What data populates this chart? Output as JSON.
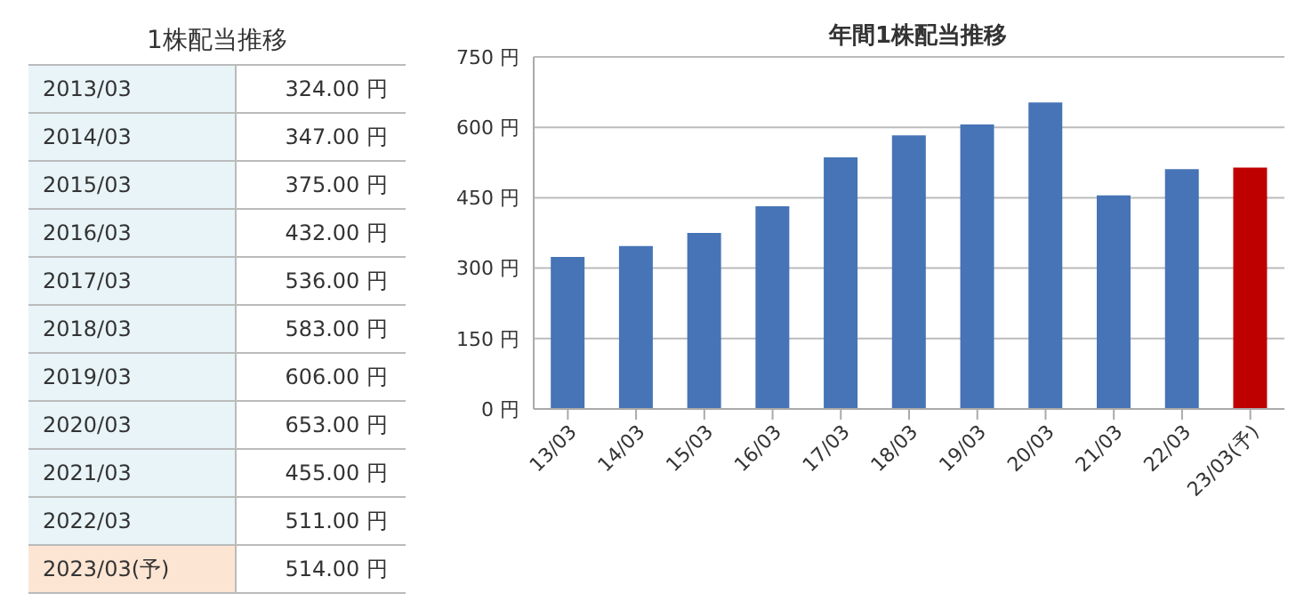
{
  "chart_data": [
    {
      "type": "other",
      "title": "1株配当推移",
      "categories": [
        "2013/03",
        "2014/03",
        "2015/03",
        "2016/03",
        "2017/03",
        "2018/03",
        "2019/03",
        "2020/03",
        "2021/03",
        "2022/03",
        "2023/03(予)"
      ],
      "value_labels": [
        "324.00 円",
        "347.00 円",
        "375.00 円",
        "432.00 円",
        "536.00 円",
        "583.00 円",
        "606.00 円",
        "653.00 円",
        "455.00 円",
        "511.00 円",
        "514.00 円"
      ],
      "colors": [
        "#e8f4f8",
        "#e8f4f8",
        "#e8f4f8",
        "#e8f4f8",
        "#e8f4f8",
        "#e8f4f8",
        "#e8f4f8",
        "#e8f4f8",
        "#e8f4f8",
        "#e8f4f8",
        "#fde5d3"
      ]
    },
    {
      "type": "bar",
      "title": "年間1株配当推移",
      "categories": [
        "13/03",
        "14/03",
        "15/03",
        "16/03",
        "17/03",
        "18/03",
        "19/03",
        "20/03",
        "21/03",
        "22/03",
        "23/03(予)"
      ],
      "values": [
        324,
        347,
        375,
        432,
        536,
        583,
        606,
        653,
        455,
        511,
        514
      ],
      "colors": [
        "#4674b6",
        "#4674b6",
        "#4674b6",
        "#4674b6",
        "#4674b6",
        "#4674b6",
        "#4674b6",
        "#4674b6",
        "#4674b6",
        "#4674b6",
        "#bf0000"
      ],
      "ylim": [
        0,
        750
      ],
      "yticks": [
        {
          "value": 0,
          "label": "0 円"
        },
        {
          "value": 150,
          "label": "150 円"
        },
        {
          "value": 300,
          "label": "300 円"
        },
        {
          "value": 450,
          "label": "450 円"
        },
        {
          "value": 600,
          "label": "600 円"
        },
        {
          "value": 750,
          "label": "750 円"
        }
      ],
      "grid": "y"
    }
  ]
}
